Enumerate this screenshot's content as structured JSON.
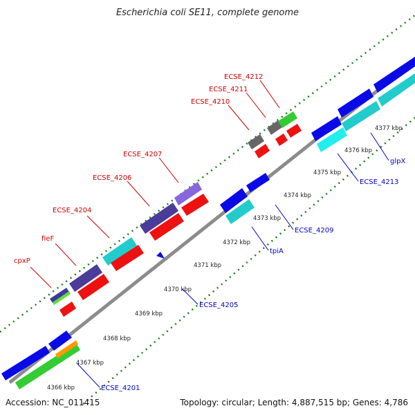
{
  "title": "Escherichia coli SE11, complete genome",
  "footer": {
    "accession": "Accession: NC_011415",
    "summary": "Topology: circular; Length: 4,887,515 bp; Genes: 4,786"
  },
  "colors": {
    "backbone": "#8c8c8c",
    "tick": "#1a7a1a",
    "label_red": "#cc0000",
    "label_blue": "#0000cc",
    "gene_blue": "#0a0ae6",
    "gene_red": "#ee1111",
    "gene_cyan": "#22cccc",
    "gene_green": "#33cc33",
    "gene_purple": "#4a3c98",
    "gene_lavender": "#8866dd",
    "gene_gray": "#666666",
    "gene_orange": "#ff9900",
    "gene_lime": "#aaff44"
  },
  "kbp_ticks": [
    "4366 kbp",
    "4367 kbp",
    "4368 kbp",
    "4369 kbp",
    "4370 kbp",
    "4371 kbp",
    "4372 kbp",
    "4373 kbp",
    "4374 kbp",
    "4375 kbp",
    "4376 kbp",
    "4377 kbp"
  ],
  "gene_labels": [
    {
      "text": "cpxP",
      "color": "red"
    },
    {
      "text": "fieF",
      "color": "red"
    },
    {
      "text": "ECSE_4204",
      "color": "red"
    },
    {
      "text": "ECSE_4206",
      "color": "red"
    },
    {
      "text": "ECSE_4207",
      "color": "red"
    },
    {
      "text": "ECSE_4210",
      "color": "red"
    },
    {
      "text": "ECSE_4211",
      "color": "red"
    },
    {
      "text": "ECSE_4212",
      "color": "red"
    },
    {
      "text": "ECSE_4201",
      "color": "blue"
    },
    {
      "text": "ECSE_4205",
      "color": "blue"
    },
    {
      "text": "tpiA",
      "color": "blue"
    },
    {
      "text": "ECSE_4209",
      "color": "blue"
    },
    {
      "text": "ECSE_4213",
      "color": "blue"
    },
    {
      "text": "glpX",
      "color": "blue"
    }
  ]
}
